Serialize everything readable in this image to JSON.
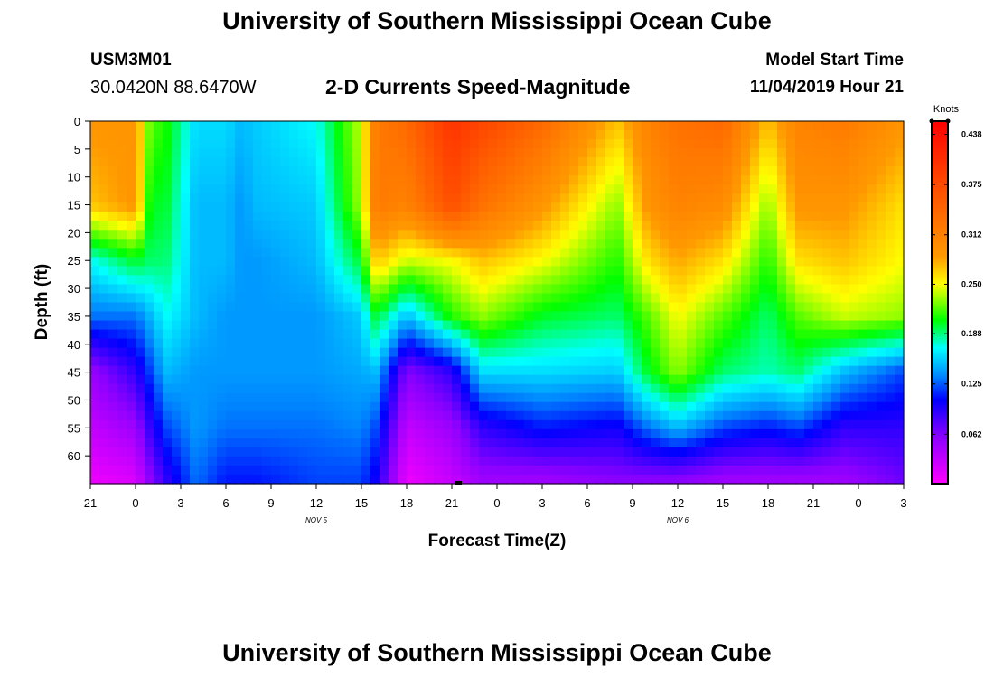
{
  "header": {
    "title": "University of Southern Mississippi Ocean Cube",
    "station_id": "USM3M01",
    "station_coords": "30.0420N 88.6470W",
    "chart_title": "2-D Currents Speed-Magnitude",
    "model_label": "Model Start Time",
    "model_time": "11/04/2019 Hour 21"
  },
  "footer": {
    "title": "University of Southern Mississippi Ocean Cube"
  },
  "chart_data": {
    "type": "heatmap",
    "title": "2-D Currents Speed-Magnitude",
    "xlabel": "Forecast Time(Z)",
    "ylabel": "Depth (ft)",
    "x_tick_labels": [
      "21",
      "0",
      "3",
      "6",
      "9",
      "12",
      "15",
      "18",
      "21",
      "0",
      "3",
      "6",
      "9",
      "12",
      "15",
      "18",
      "21",
      "0",
      "3"
    ],
    "x_hours": [
      0,
      54
    ],
    "day_labels": [
      {
        "text": "NOV 5",
        "hour": 15
      },
      {
        "text": "NOV 6",
        "hour": 39
      }
    ],
    "y_ticks": [
      0,
      5,
      10,
      15,
      20,
      25,
      30,
      35,
      40,
      45,
      50,
      55,
      60
    ],
    "ylim": [
      0,
      65
    ],
    "colorbar": {
      "unit": "Knots",
      "ticks": [
        "0.438",
        "0.375",
        "0.312",
        "0.250",
        "0.188",
        "0.125",
        "0.062"
      ],
      "tick_values": [
        0.438,
        0.375,
        0.312,
        0.25,
        0.188,
        0.125,
        0.062
      ],
      "range": [
        0.0,
        0.4545
      ]
    },
    "color_stops": [
      {
        "v": 0.0,
        "color": "#ff00ff"
      },
      {
        "v": 0.06,
        "color": "#8800ff"
      },
      {
        "v": 0.105,
        "color": "#0000ff"
      },
      {
        "v": 0.135,
        "color": "#0088ff"
      },
      {
        "v": 0.17,
        "color": "#00ffff"
      },
      {
        "v": 0.205,
        "color": "#00ff00"
      },
      {
        "v": 0.25,
        "color": "#ffff00"
      },
      {
        "v": 0.285,
        "color": "#ff9900"
      },
      {
        "v": 0.4,
        "color": "#ff3300"
      },
      {
        "v": 0.455,
        "color": "#ff0000"
      }
    ],
    "depths_ft": [
      0,
      15,
      25,
      35,
      45,
      55,
      64
    ],
    "speed_profiles_knots": [
      {
        "hour": 0,
        "speed": [
          0.29,
          0.27,
          0.17,
          0.13,
          0.05,
          0.03,
          0.01
        ]
      },
      {
        "hour": 3,
        "speed": [
          0.29,
          0.29,
          0.2,
          0.13,
          0.09,
          0.05,
          0.02
        ]
      },
      {
        "hour": 4,
        "speed": [
          0.22,
          0.2,
          0.19,
          0.15,
          0.12,
          0.09,
          0.06
        ]
      },
      {
        "hour": 5,
        "speed": [
          0.21,
          0.2,
          0.19,
          0.17,
          0.15,
          0.12,
          0.09
        ]
      },
      {
        "hour": 7,
        "speed": [
          0.16,
          0.15,
          0.15,
          0.15,
          0.14,
          0.14,
          0.13
        ]
      },
      {
        "hour": 9,
        "speed": [
          0.16,
          0.15,
          0.15,
          0.14,
          0.14,
          0.13,
          0.11
        ]
      },
      {
        "hour": 10,
        "speed": [
          0.15,
          0.14,
          0.14,
          0.14,
          0.14,
          0.13,
          0.11
        ]
      },
      {
        "hour": 11,
        "speed": [
          0.155,
          0.15,
          0.14,
          0.14,
          0.14,
          0.13,
          0.11
        ]
      },
      {
        "hour": 15,
        "speed": [
          0.17,
          0.155,
          0.15,
          0.14,
          0.14,
          0.13,
          0.12
        ]
      },
      {
        "hour": 18,
        "speed": [
          0.24,
          0.235,
          0.2,
          0.155,
          0.145,
          0.135,
          0.12
        ]
      },
      {
        "hour": 19,
        "speed": [
          0.32,
          0.32,
          0.27,
          0.2,
          0.15,
          0.12,
          0.1
        ]
      },
      {
        "hour": 21,
        "speed": [
          0.34,
          0.31,
          0.24,
          0.15,
          0.06,
          0.03,
          0.01
        ]
      },
      {
        "hour": 24,
        "speed": [
          0.4,
          0.37,
          0.25,
          0.21,
          0.09,
          0.05,
          0.03
        ]
      },
      {
        "hour": 26,
        "speed": [
          0.38,
          0.33,
          0.27,
          0.23,
          0.16,
          0.09,
          0.05
        ]
      },
      {
        "hour": 30,
        "speed": [
          0.34,
          0.29,
          0.25,
          0.2,
          0.16,
          0.11,
          0.05
        ]
      },
      {
        "hour": 35,
        "speed": [
          0.27,
          0.23,
          0.21,
          0.19,
          0.155,
          0.1,
          0.06
        ]
      },
      {
        "hour": 37,
        "speed": [
          0.31,
          0.29,
          0.26,
          0.22,
          0.2,
          0.13,
          0.06
        ]
      },
      {
        "hour": 39,
        "speed": [
          0.33,
          0.31,
          0.28,
          0.25,
          0.23,
          0.15,
          0.06
        ]
      },
      {
        "hour": 42,
        "speed": [
          0.34,
          0.3,
          0.26,
          0.22,
          0.19,
          0.12,
          0.05
        ]
      },
      {
        "hour": 45,
        "speed": [
          0.27,
          0.23,
          0.21,
          0.19,
          0.18,
          0.11,
          0.05
        ]
      },
      {
        "hour": 47,
        "speed": [
          0.31,
          0.29,
          0.26,
          0.22,
          0.19,
          0.12,
          0.05
        ]
      },
      {
        "hour": 50,
        "speed": [
          0.32,
          0.29,
          0.27,
          0.24,
          0.15,
          0.09,
          0.05
        ]
      },
      {
        "hour": 54,
        "speed": [
          0.29,
          0.26,
          0.25,
          0.23,
          0.12,
          0.09,
          0.07
        ]
      }
    ]
  }
}
